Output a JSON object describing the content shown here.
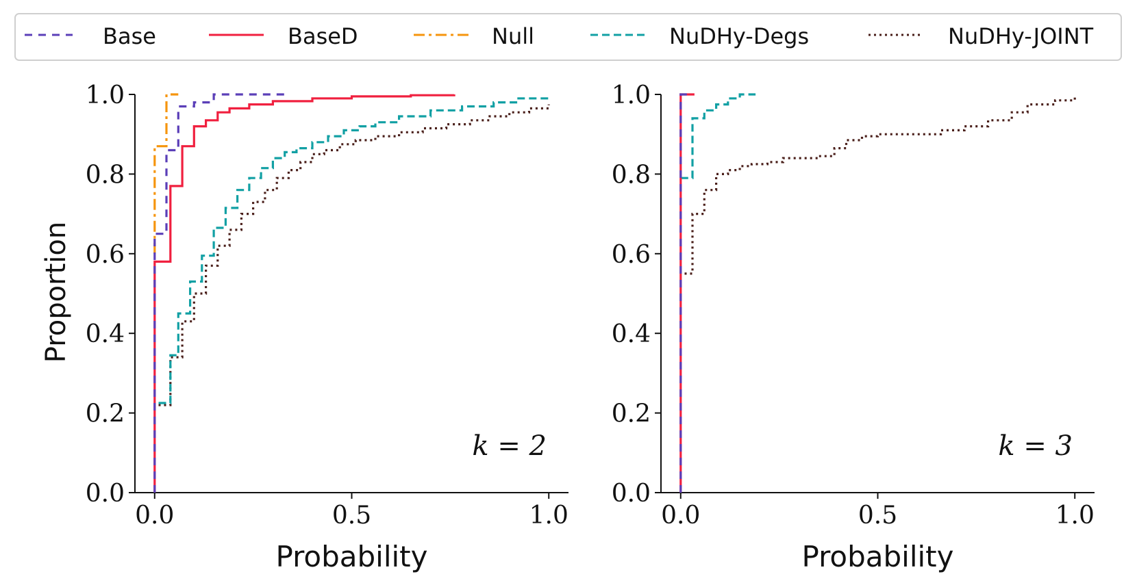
{
  "legend": {
    "entries": [
      {
        "name": "Base",
        "color": "#5b3fb8",
        "dash": "dashed"
      },
      {
        "name": "BaseD",
        "color": "#f0203f",
        "dash": "solid"
      },
      {
        "name": "Null",
        "color": "#f5950e",
        "dash": "dashdot"
      },
      {
        "name": "NuDHy-Degs",
        "color": "#12a0a4",
        "dash": "dashed"
      },
      {
        "name": "NuDHy-JOINT",
        "color": "#4a1f1a",
        "dash": "dotted"
      }
    ]
  },
  "chart_data": [
    {
      "type": "line",
      "step": "post",
      "panel_label": "k = 2",
      "xlabel": "Probability",
      "ylabel": "Proportion",
      "xlim": [
        -0.05,
        1.05
      ],
      "ylim": [
        0.0,
        1.0
      ],
      "xticks": [
        "0.0",
        "0.5",
        "1.0"
      ],
      "yticks": [
        "0.0",
        "0.2",
        "0.4",
        "0.6",
        "0.8",
        "1.0"
      ],
      "series": [
        {
          "name": "Base",
          "x": [
            0,
            0,
            0.03,
            0.06,
            0.1,
            0.15,
            0.33
          ],
          "y": [
            0,
            0.65,
            0.86,
            0.97,
            0.98,
            1.0,
            1.0
          ]
        },
        {
          "name": "BaseD",
          "x": [
            0,
            0,
            0.04,
            0.07,
            0.1,
            0.13,
            0.16,
            0.19,
            0.24,
            0.3,
            0.4,
            0.5,
            0.65,
            0.76
          ],
          "y": [
            0,
            0.58,
            0.77,
            0.87,
            0.92,
            0.935,
            0.955,
            0.965,
            0.975,
            0.983,
            0.99,
            0.995,
            0.998,
            1.0
          ]
        },
        {
          "name": "Null",
          "x": [
            0,
            0,
            0.03,
            0.06
          ],
          "y": [
            0.6,
            0.87,
            1.0,
            1.0
          ]
        },
        {
          "name": "NuDHy-Degs",
          "x": [
            0.01,
            0.04,
            0.06,
            0.09,
            0.12,
            0.15,
            0.18,
            0.21,
            0.24,
            0.27,
            0.3,
            0.33,
            0.36,
            0.4,
            0.44,
            0.48,
            0.52,
            0.56,
            0.62,
            0.7,
            0.78,
            0.86,
            0.92,
            1.0
          ],
          "y": [
            0.225,
            0.345,
            0.45,
            0.53,
            0.595,
            0.665,
            0.715,
            0.76,
            0.79,
            0.815,
            0.84,
            0.855,
            0.865,
            0.88,
            0.895,
            0.91,
            0.92,
            0.93,
            0.945,
            0.96,
            0.97,
            0.98,
            0.99,
            0.995
          ]
        },
        {
          "name": "NuDHy-JOINT",
          "x": [
            0.01,
            0.04,
            0.07,
            0.1,
            0.13,
            0.16,
            0.19,
            0.22,
            0.25,
            0.28,
            0.31,
            0.34,
            0.37,
            0.4,
            0.43,
            0.47,
            0.51,
            0.56,
            0.62,
            0.68,
            0.74,
            0.8,
            0.85,
            0.9,
            0.95,
            1.0
          ],
          "y": [
            0.22,
            0.34,
            0.43,
            0.5,
            0.57,
            0.62,
            0.66,
            0.7,
            0.73,
            0.76,
            0.79,
            0.81,
            0.83,
            0.85,
            0.86,
            0.875,
            0.885,
            0.895,
            0.905,
            0.915,
            0.925,
            0.935,
            0.945,
            0.955,
            0.965,
            0.975
          ]
        }
      ]
    },
    {
      "type": "line",
      "step": "post",
      "panel_label": "k = 3",
      "xlabel": "Probability",
      "ylabel": "",
      "xlim": [
        -0.05,
        1.05
      ],
      "ylim": [
        0.0,
        1.0
      ],
      "xticks": [
        "0.0",
        "0.5",
        "1.0"
      ],
      "yticks": [
        "0.0",
        "0.2",
        "0.4",
        "0.6",
        "0.8",
        "1.0"
      ],
      "series": [
        {
          "name": "Base",
          "x": [
            0,
            0,
            0.03
          ],
          "y": [
            0,
            1.0,
            1.0
          ]
        },
        {
          "name": "BaseD",
          "x": [
            0,
            0,
            0.035
          ],
          "y": [
            0,
            1.0,
            1.0
          ]
        },
        {
          "name": "Null",
          "x": [],
          "y": []
        },
        {
          "name": "NuDHy-Degs",
          "x": [
            0,
            0.03,
            0.06,
            0.09,
            0.12,
            0.15,
            0.19
          ],
          "y": [
            0.79,
            0.94,
            0.96,
            0.975,
            0.99,
            1.0,
            1.0
          ]
        },
        {
          "name": "NuDHy-JOINT",
          "x": [
            0.01,
            0.03,
            0.06,
            0.09,
            0.12,
            0.15,
            0.18,
            0.22,
            0.26,
            0.3,
            0.35,
            0.39,
            0.42,
            0.46,
            0.5,
            0.55,
            0.6,
            0.66,
            0.72,
            0.78,
            0.84,
            0.88,
            0.95,
            1.0
          ],
          "y": [
            0.55,
            0.7,
            0.76,
            0.8,
            0.81,
            0.82,
            0.825,
            0.83,
            0.84,
            0.84,
            0.845,
            0.865,
            0.885,
            0.895,
            0.9,
            0.9,
            0.9,
            0.91,
            0.92,
            0.935,
            0.955,
            0.975,
            0.985,
            1.0
          ]
        }
      ]
    }
  ]
}
